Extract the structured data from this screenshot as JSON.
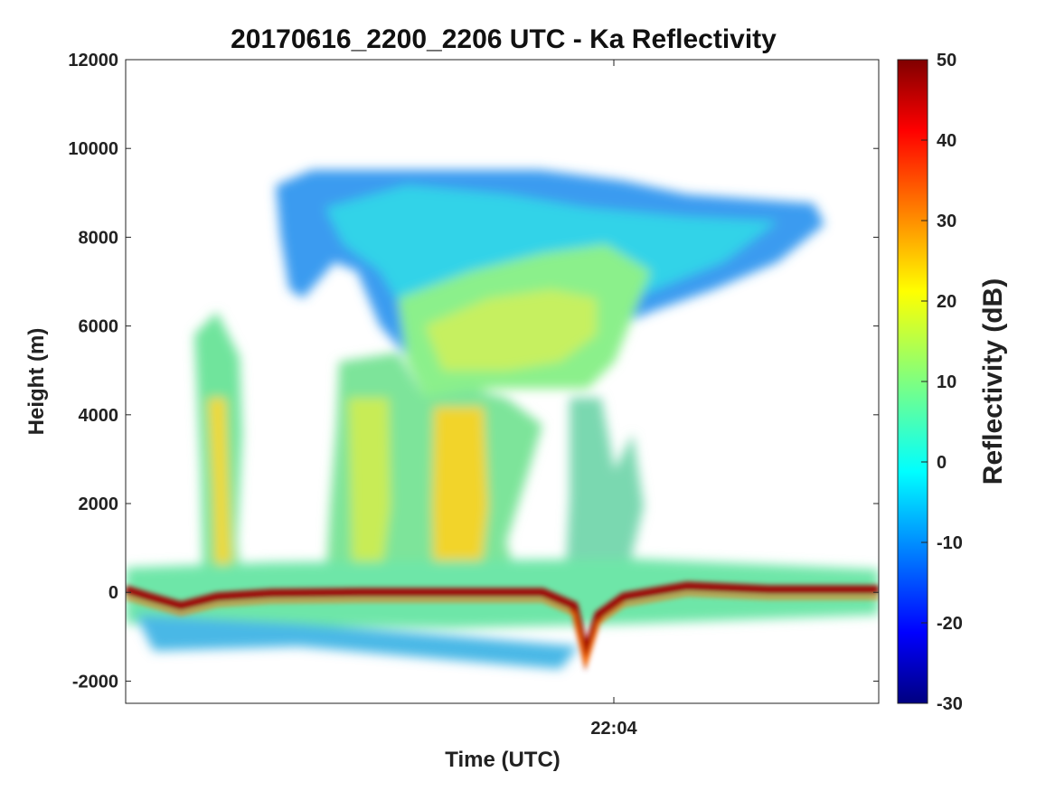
{
  "chart_data": {
    "type": "heatmap",
    "title": "20170616_2200_2206 UTC - Ka Reflectivity",
    "xlabel": "Time (UTC)",
    "ylabel": "Height (m)",
    "ylim": [
      -2500,
      12000
    ],
    "y_ticks": [
      -2000,
      0,
      2000,
      4000,
      6000,
      8000,
      10000,
      12000
    ],
    "y_tick_labels": [
      "-2000",
      "0",
      "2000",
      "4000",
      "6000",
      "8000",
      "10000",
      "12000"
    ],
    "x_tick_labels": [
      "22:04"
    ],
    "colorbar": {
      "label": "Reflectivity (dB)",
      "range": [
        -30,
        50
      ],
      "ticks": [
        -30,
        -20,
        -10,
        0,
        10,
        20,
        30,
        40,
        50
      ],
      "tick_labels": [
        "-30",
        "-20",
        "-10",
        "0",
        "10",
        "20",
        "30",
        "40",
        "50"
      ],
      "colormap": "jet"
    },
    "grid": false
  }
}
